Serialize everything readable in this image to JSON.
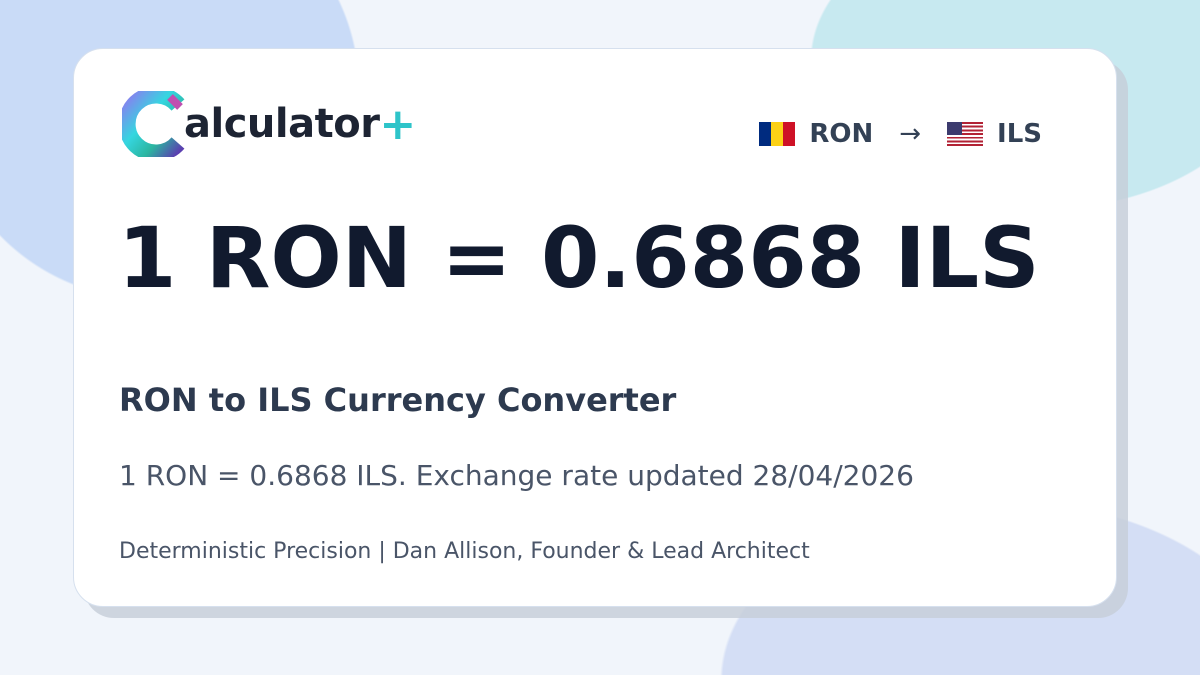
{
  "logo": {
    "text": "alculator",
    "plus": "+"
  },
  "pair": {
    "from": "RON",
    "to": "ILS",
    "arrow": "→",
    "from_flag": "romania-flag",
    "to_flag": "us-flag"
  },
  "rate": "1 RON = 0.6868 ILS",
  "title": "RON to ILS Currency Converter",
  "description": "1 RON = 0.6868 ILS. Exchange rate updated 28/04/2026",
  "footer": "Deterministic Precision | Dan Allison, Founder & Lead Architect",
  "colors": {
    "accent": "#2ec4c9",
    "text": "#111a2e"
  }
}
